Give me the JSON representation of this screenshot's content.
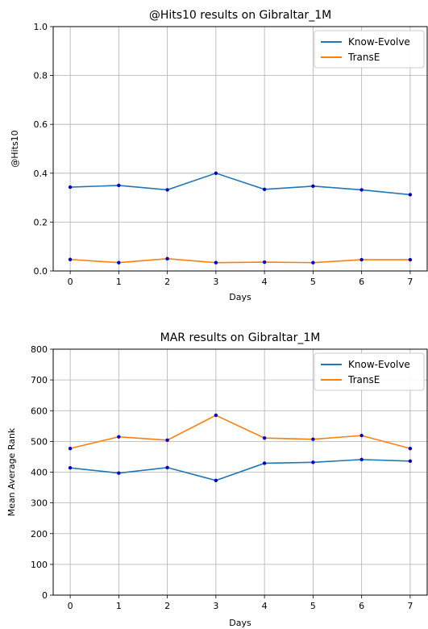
{
  "chart_data": [
    {
      "type": "line",
      "title": "@Hits10 results on Gibraltar_1M",
      "xlabel": "Days",
      "ylabel": "@Hits10",
      "x": [
        0,
        1,
        2,
        3,
        4,
        5,
        6,
        7
      ],
      "xticks": [
        "0",
        "1",
        "2",
        "3",
        "4",
        "5",
        "6",
        "7"
      ],
      "yticks": [
        "0.0",
        "0.2",
        "0.4",
        "0.6",
        "0.8",
        "1.0"
      ],
      "ylim": [
        0,
        1
      ],
      "grid": true,
      "legend_position": "top-right",
      "series": [
        {
          "name": "Know-Evolve",
          "color": "#1f77b4",
          "values": [
            0.343,
            0.35,
            0.332,
            0.4,
            0.334,
            0.347,
            0.332,
            0.312
          ]
        },
        {
          "name": "TransE",
          "color": "#ff7f0e",
          "values": [
            0.047,
            0.034,
            0.05,
            0.034,
            0.036,
            0.034,
            0.046,
            0.046
          ]
        }
      ]
    },
    {
      "type": "line",
      "title": "MAR results on Gibraltar_1M",
      "xlabel": "Days",
      "ylabel": "Mean Average Rank",
      "x": [
        0,
        1,
        2,
        3,
        4,
        5,
        6,
        7
      ],
      "xticks": [
        "0",
        "1",
        "2",
        "3",
        "4",
        "5",
        "6",
        "7"
      ],
      "yticks": [
        "0",
        "100",
        "200",
        "300",
        "400",
        "500",
        "600",
        "700",
        "800"
      ],
      "ylim": [
        0,
        800
      ],
      "grid": true,
      "legend_position": "top-right",
      "series": [
        {
          "name": "Know-Evolve",
          "color": "#1f77b4",
          "values": [
            414,
            397,
            415,
            373,
            429,
            432,
            441,
            436
          ]
        },
        {
          "name": "TransE",
          "color": "#ff7f0e",
          "values": [
            477,
            515,
            504,
            585,
            511,
            507,
            519,
            477
          ]
        }
      ]
    }
  ]
}
